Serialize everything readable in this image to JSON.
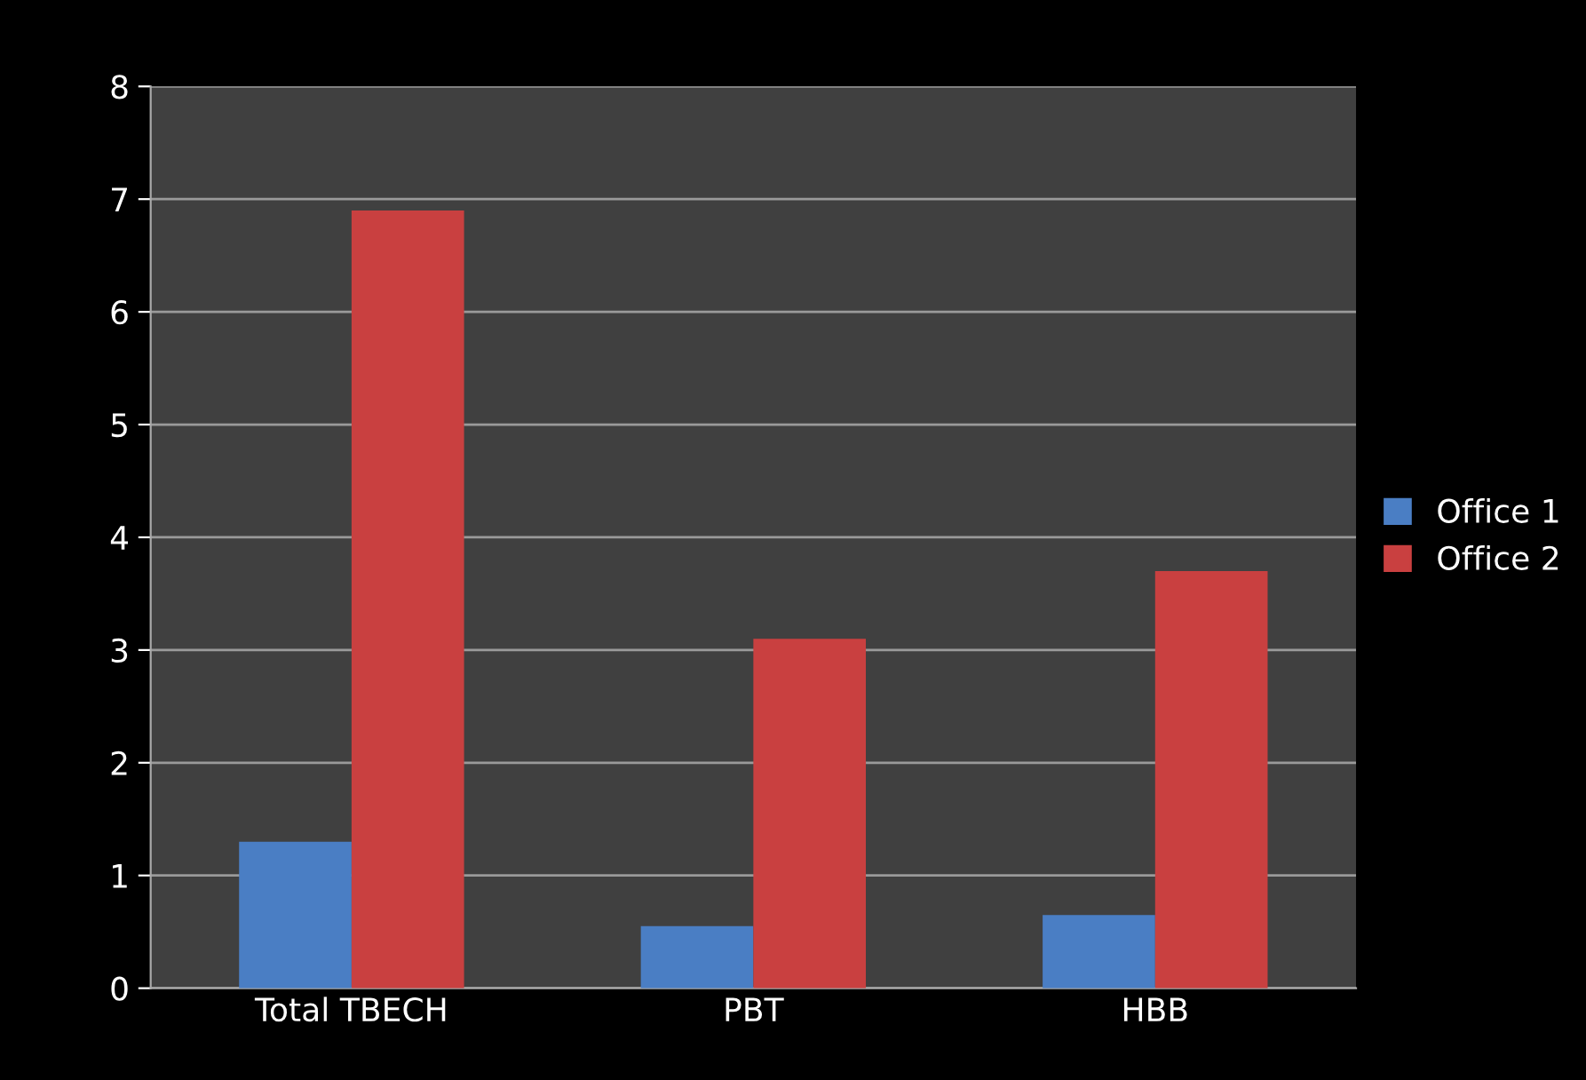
{
  "chart_data": {
    "type": "bar",
    "categories": [
      "Total TBECH",
      "PBT",
      "HBB"
    ],
    "series": [
      {
        "name": "Office 1",
        "color": "#4a7ec4",
        "values": [
          1.3,
          0.55,
          0.65
        ]
      },
      {
        "name": "Office 2",
        "color": "#c94040",
        "values": [
          6.9,
          3.1,
          3.7
        ]
      }
    ],
    "ylim": [
      0,
      8
    ],
    "yticks": [
      0,
      1,
      2,
      3,
      4,
      5,
      6,
      7,
      8
    ],
    "grid": "y",
    "legend": "right"
  }
}
